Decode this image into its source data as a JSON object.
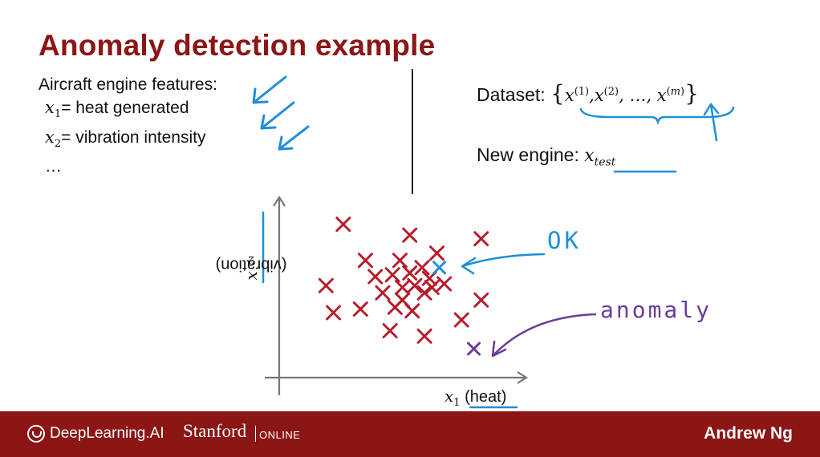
{
  "slide": {
    "title": "Anomaly detection example",
    "features": {
      "heading": "Aircraft engine features:",
      "items": [
        {
          "var": "x",
          "sub": "1",
          "text": "= heat generated"
        },
        {
          "var": "x",
          "sub": "2",
          "text": "= vibration intensity"
        }
      ],
      "ellipsis": "…"
    },
    "dataset": {
      "label": "Dataset:",
      "open_brace": "{",
      "close_brace": "}",
      "x": "x",
      "sup1": "(1)",
      "sup2": "(2)",
      "ellipsis": ", …, ",
      "supm_open": "(",
      "supm_var": "m",
      "supm_close": ")",
      "comma": ","
    },
    "new_engine": {
      "label": "New engine:",
      "x": "x",
      "sub": "test"
    }
  },
  "plot": {
    "x_axis": {
      "var": "x",
      "sub": "1",
      "label": "(heat)"
    },
    "y_axis": {
      "var": "x",
      "sub": "2",
      "label": "(vibration)"
    },
    "training_points": [
      [
        0.26,
        0.85
      ],
      [
        0.53,
        0.79
      ],
      [
        0.82,
        0.77
      ],
      [
        0.35,
        0.65
      ],
      [
        0.49,
        0.65
      ],
      [
        0.64,
        0.69
      ],
      [
        0.39,
        0.56
      ],
      [
        0.46,
        0.57
      ],
      [
        0.53,
        0.58
      ],
      [
        0.58,
        0.61
      ],
      [
        0.61,
        0.55
      ],
      [
        0.19,
        0.51
      ],
      [
        0.55,
        0.51
      ],
      [
        0.5,
        0.5
      ],
      [
        0.62,
        0.5
      ],
      [
        0.67,
        0.52
      ],
      [
        0.42,
        0.47
      ],
      [
        0.5,
        0.43
      ],
      [
        0.59,
        0.47
      ],
      [
        0.82,
        0.43
      ],
      [
        0.22,
        0.36
      ],
      [
        0.33,
        0.38
      ],
      [
        0.47,
        0.39
      ],
      [
        0.54,
        0.37
      ],
      [
        0.74,
        0.32
      ],
      [
        0.45,
        0.26
      ],
      [
        0.59,
        0.23
      ]
    ],
    "test_ok_point": [
      0.65,
      0.61
    ],
    "test_anomaly_point": [
      0.79,
      0.16
    ],
    "ok_annotation": "OK",
    "anomaly_annotation": "anomaly"
  },
  "colors": {
    "title": "#8c1515",
    "training": "#b71c2a",
    "ok": "#1e8fd8",
    "anomaly": "#6a3b9a",
    "footer": "#8c1515"
  },
  "footer": {
    "brand": "DeepLearning.AI",
    "university": "Stanford",
    "online": "ONLINE",
    "presenter": "Andrew Ng"
  }
}
